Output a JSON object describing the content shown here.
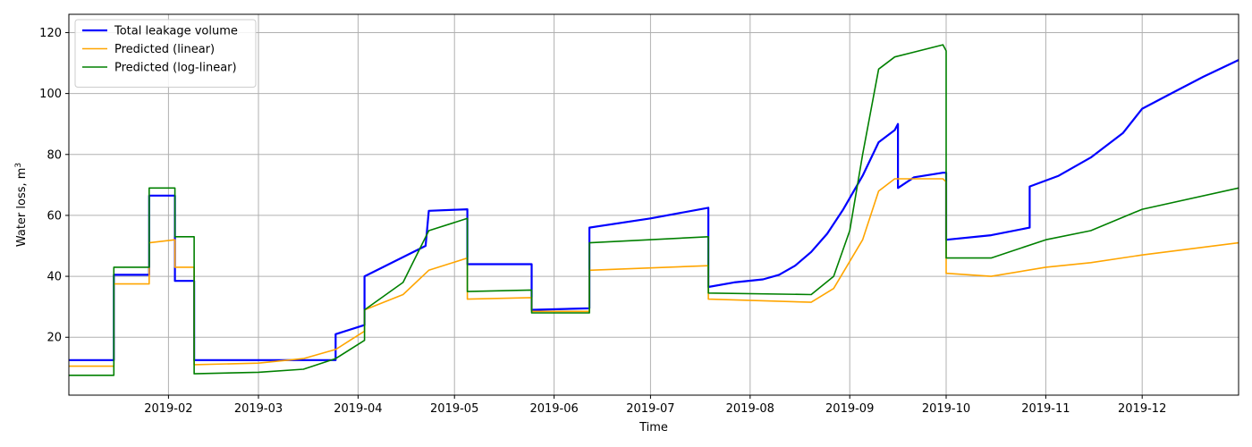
{
  "chart_data": {
    "type": "line",
    "title": "",
    "xlabel": "Time",
    "ylabel": "Water loss, m",
    "ylabel_superscript": "3",
    "xlim": [
      "2019-01-01",
      "2019-12-31"
    ],
    "ylim": [
      1,
      126
    ],
    "grid": true,
    "legend_position": "top-left",
    "x_ticks": [
      "2019-02",
      "2019-03",
      "2019-04",
      "2019-05",
      "2019-06",
      "2019-07",
      "2019-08",
      "2019-09",
      "2019-10",
      "2019-11",
      "2019-12"
    ],
    "y_ticks": [
      20,
      40,
      60,
      80,
      100,
      120
    ],
    "series": [
      {
        "name": "Total leakage volume",
        "color": "#0000ff",
        "line_width": 2.2,
        "points": [
          [
            "2019-01-01",
            12.5
          ],
          [
            "2019-01-15",
            12.5
          ],
          [
            "2019-01-15",
            40.5
          ],
          [
            "2019-01-26",
            40.5
          ],
          [
            "2019-01-26",
            66.5
          ],
          [
            "2019-02-03",
            66.5
          ],
          [
            "2019-02-03",
            38.5
          ],
          [
            "2019-02-09",
            38.5
          ],
          [
            "2019-02-09",
            12.5
          ],
          [
            "2019-03-25",
            12.5
          ],
          [
            "2019-03-25",
            21
          ],
          [
            "2019-04-03",
            24
          ],
          [
            "2019-04-03",
            40
          ],
          [
            "2019-04-22",
            50
          ],
          [
            "2019-04-23",
            61.5
          ],
          [
            "2019-05-05",
            62
          ],
          [
            "2019-05-05",
            44
          ],
          [
            "2019-05-25",
            44
          ],
          [
            "2019-05-25",
            29
          ],
          [
            "2019-06-12",
            29.5
          ],
          [
            "2019-06-12",
            56
          ],
          [
            "2019-07-01",
            59
          ],
          [
            "2019-07-19",
            62.5
          ],
          [
            "2019-07-19",
            36.5
          ],
          [
            "2019-07-27",
            38
          ],
          [
            "2019-08-05",
            39
          ],
          [
            "2019-08-10",
            40.5
          ],
          [
            "2019-08-15",
            43.5
          ],
          [
            "2019-08-20",
            48
          ],
          [
            "2019-08-25",
            54
          ],
          [
            "2019-08-30",
            62
          ],
          [
            "2019-09-05",
            73
          ],
          [
            "2019-09-10",
            84
          ],
          [
            "2019-09-15",
            88
          ],
          [
            "2019-09-16",
            90
          ],
          [
            "2019-09-16",
            69
          ],
          [
            "2019-09-21",
            72.5
          ],
          [
            "2019-09-30",
            74
          ],
          [
            "2019-10-01",
            74
          ],
          [
            "2019-10-01",
            52
          ],
          [
            "2019-10-15",
            53.5
          ],
          [
            "2019-10-27",
            56
          ],
          [
            "2019-10-27",
            69.5
          ],
          [
            "2019-11-05",
            73
          ],
          [
            "2019-11-15",
            79
          ],
          [
            "2019-11-25",
            87
          ],
          [
            "2019-12-01",
            95
          ],
          [
            "2019-12-10",
            100
          ],
          [
            "2019-12-20",
            105.5
          ],
          [
            "2019-12-31",
            111
          ]
        ]
      },
      {
        "name": "Predicted (linear)",
        "color": "#ffa500",
        "line_width": 1.6,
        "points": [
          [
            "2019-01-01",
            10.5
          ],
          [
            "2019-01-15",
            10.5
          ],
          [
            "2019-01-15",
            37.5
          ],
          [
            "2019-01-26",
            37.5
          ],
          [
            "2019-01-26",
            51
          ],
          [
            "2019-02-03",
            52
          ],
          [
            "2019-02-03",
            43
          ],
          [
            "2019-02-09",
            43
          ],
          [
            "2019-02-09",
            11
          ],
          [
            "2019-03-01",
            11.5
          ],
          [
            "2019-03-15",
            13
          ],
          [
            "2019-03-25",
            16
          ],
          [
            "2019-04-03",
            22
          ],
          [
            "2019-04-03",
            29
          ],
          [
            "2019-04-15",
            34
          ],
          [
            "2019-04-23",
            42
          ],
          [
            "2019-05-05",
            46
          ],
          [
            "2019-05-05",
            32.5
          ],
          [
            "2019-05-25",
            33
          ],
          [
            "2019-05-25",
            28.5
          ],
          [
            "2019-06-12",
            28.5
          ],
          [
            "2019-06-12",
            42
          ],
          [
            "2019-07-19",
            43.5
          ],
          [
            "2019-07-19",
            32.5
          ],
          [
            "2019-08-20",
            31.5
          ],
          [
            "2019-08-27",
            36
          ],
          [
            "2019-09-05",
            52
          ],
          [
            "2019-09-10",
            68
          ],
          [
            "2019-09-15",
            72
          ],
          [
            "2019-09-30",
            72
          ],
          [
            "2019-10-01",
            71
          ],
          [
            "2019-10-01",
            41
          ],
          [
            "2019-10-15",
            40
          ],
          [
            "2019-11-01",
            43
          ],
          [
            "2019-11-15",
            44.5
          ],
          [
            "2019-12-01",
            47
          ],
          [
            "2019-12-31",
            51
          ]
        ]
      },
      {
        "name": "Predicted (log-linear)",
        "color": "#008000",
        "line_width": 1.6,
        "points": [
          [
            "2019-01-01",
            7.5
          ],
          [
            "2019-01-15",
            7.5
          ],
          [
            "2019-01-15",
            43
          ],
          [
            "2019-01-26",
            43
          ],
          [
            "2019-01-26",
            69
          ],
          [
            "2019-02-03",
            69
          ],
          [
            "2019-02-03",
            53
          ],
          [
            "2019-02-09",
            53
          ],
          [
            "2019-02-09",
            8
          ],
          [
            "2019-03-01",
            8.5
          ],
          [
            "2019-03-15",
            9.5
          ],
          [
            "2019-03-25",
            13
          ],
          [
            "2019-04-03",
            19
          ],
          [
            "2019-04-03",
            29
          ],
          [
            "2019-04-15",
            38
          ],
          [
            "2019-04-23",
            55
          ],
          [
            "2019-05-05",
            59
          ],
          [
            "2019-05-05",
            35
          ],
          [
            "2019-05-25",
            35.5
          ],
          [
            "2019-05-25",
            28
          ],
          [
            "2019-06-12",
            28
          ],
          [
            "2019-06-12",
            51
          ],
          [
            "2019-07-19",
            53
          ],
          [
            "2019-07-19",
            34.5
          ],
          [
            "2019-08-20",
            34
          ],
          [
            "2019-08-27",
            40
          ],
          [
            "2019-09-01",
            55
          ],
          [
            "2019-09-05",
            80
          ],
          [
            "2019-09-10",
            108
          ],
          [
            "2019-09-15",
            112
          ],
          [
            "2019-09-30",
            116
          ],
          [
            "2019-10-01",
            114
          ],
          [
            "2019-10-01",
            46
          ],
          [
            "2019-10-15",
            46
          ],
          [
            "2019-11-01",
            52
          ],
          [
            "2019-11-15",
            55
          ],
          [
            "2019-12-01",
            62
          ],
          [
            "2019-12-31",
            69
          ]
        ]
      }
    ]
  }
}
